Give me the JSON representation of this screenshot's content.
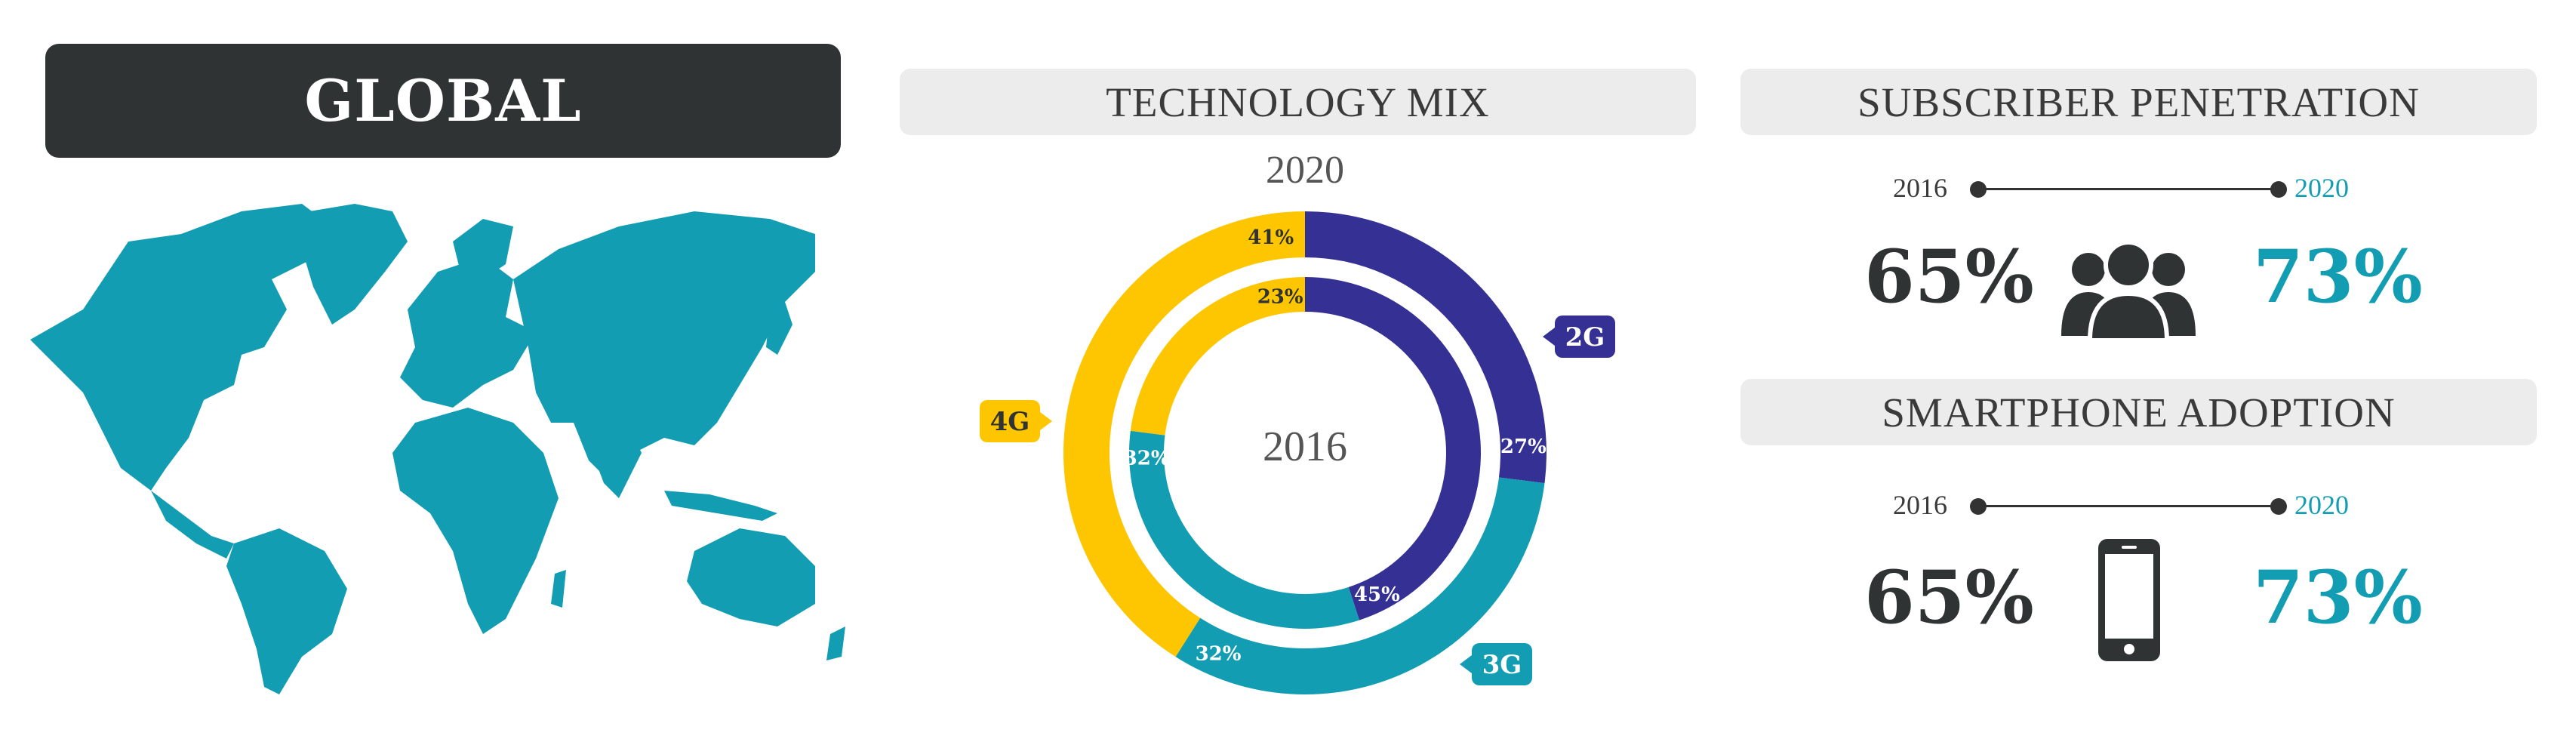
{
  "header": {
    "title": "GLOBAL"
  },
  "technology_mix": {
    "title": "TECHNOLOGY MIX",
    "outer_year": "2020",
    "inner_year": "2016",
    "colors": {
      "2G": "#353093",
      "3G": "#139db3",
      "4G": "#fec600"
    }
  },
  "subscriber_penetration": {
    "title": "SUBSCRIBER PENETRATION",
    "start_year": "2016",
    "end_year": "2020",
    "start_value": "65%",
    "end_value": "73%",
    "icon": "people-icon"
  },
  "smartphone_adoption": {
    "title": "SMARTPHONE ADOPTION",
    "start_year": "2016",
    "end_year": "2020",
    "start_value": "65%",
    "end_value": "73%",
    "icon": "smartphone-icon"
  },
  "chart_data": {
    "type": "pie",
    "title": "TECHNOLOGY MIX",
    "categories": [
      "2G",
      "3G",
      "4G"
    ],
    "series": [
      {
        "name": "2020",
        "ring": "outer",
        "values": [
          27,
          32,
          41
        ]
      },
      {
        "name": "2016",
        "ring": "inner",
        "values": [
          45,
          32,
          23
        ]
      }
    ],
    "value_labels": {
      "2020": [
        "27%",
        "32%",
        "41%"
      ],
      "2016": [
        "45%",
        "32%",
        "23%"
      ]
    }
  }
}
